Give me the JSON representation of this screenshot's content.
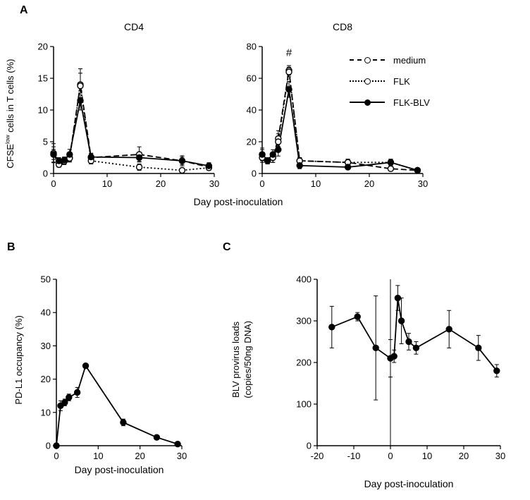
{
  "figure": {
    "panels": {
      "a": {
        "label": "A"
      },
      "b": {
        "label": "B"
      },
      "c": {
        "label": "C"
      }
    }
  },
  "chart_data": [
    {
      "id": "cd4",
      "type": "line",
      "title": "CD4",
      "xlabel": "Day post-inoculation",
      "ylabel": "CFSE^low cells in T cells (%)",
      "ylabel_parts": {
        "prefix": "CFSE",
        "sup": "low",
        "suffix": " cells in T cells (%)"
      },
      "xlim": [
        0,
        30
      ],
      "xticks": [
        0,
        10,
        20,
        30
      ],
      "ylim": [
        0,
        20
      ],
      "yticks": [
        0,
        5,
        10,
        15,
        20
      ],
      "grid": false,
      "x": [
        0,
        1,
        2,
        3,
        5,
        7,
        16,
        24,
        29
      ],
      "series": [
        {
          "name": "medium",
          "style": "dashed",
          "marker": "open",
          "values": [
            3.2,
            1.5,
            2.0,
            2.5,
            14.0,
            2.5,
            3.0,
            2.0,
            1.0
          ],
          "errors": [
            1.5,
            0.5,
            0.5,
            0.6,
            2.5,
            0.6,
            1.2,
            0.8,
            0.4
          ]
        },
        {
          "name": "FLK",
          "style": "dotted",
          "marker": "open",
          "values": [
            3.0,
            1.4,
            1.9,
            2.4,
            13.8,
            2.0,
            1.0,
            0.5,
            0.9
          ],
          "errors": [
            1.2,
            0.4,
            0.5,
            0.6,
            2.0,
            0.5,
            0.5,
            0.3,
            0.4
          ]
        },
        {
          "name": "FLK-BLV",
          "style": "solid",
          "marker": "filled",
          "values": [
            3.0,
            2.0,
            2.1,
            3.0,
            11.5,
            2.6,
            2.5,
            2.0,
            1.2
          ],
          "errors": [
            0.8,
            0.5,
            0.5,
            0.8,
            1.5,
            0.6,
            0.6,
            0.6,
            0.5
          ]
        }
      ]
    },
    {
      "id": "cd8",
      "type": "line",
      "title": "CD8",
      "xlabel": "Day post-inoculation",
      "ylabel": "CFSE^low cells in T cells (%)",
      "xlim": [
        0,
        30
      ],
      "xticks": [
        0,
        10,
        20,
        30
      ],
      "ylim": [
        0,
        80
      ],
      "yticks": [
        0,
        20,
        40,
        60,
        80
      ],
      "grid": false,
      "legend_position": "top-right",
      "x": [
        0,
        1,
        2,
        3,
        5,
        7,
        16,
        24,
        29
      ],
      "series": [
        {
          "name": "medium",
          "style": "dashed",
          "marker": "open",
          "values": [
            12,
            8,
            10,
            22,
            65,
            8,
            7,
            3,
            2
          ],
          "errors": [
            4,
            2,
            3,
            5,
            3,
            2,
            2,
            1,
            1
          ]
        },
        {
          "name": "FLK",
          "style": "dotted",
          "marker": "open",
          "values": [
            10,
            8,
            10,
            20,
            64,
            8,
            7,
            7,
            2
          ],
          "errors": [
            3,
            2,
            3,
            5,
            3,
            2,
            2,
            2,
            1
          ]
        },
        {
          "name": "FLK-BLV",
          "style": "solid",
          "marker": "filled",
          "values": [
            12,
            8,
            12,
            15,
            53,
            5,
            4,
            7,
            2
          ],
          "errors": [
            3,
            2,
            3,
            4,
            5,
            2,
            1,
            2,
            1
          ]
        }
      ],
      "annotations": [
        {
          "x": 5,
          "y": 74,
          "text": "#"
        }
      ]
    },
    {
      "id": "pdl1",
      "type": "line",
      "title": "",
      "xlabel": "Day post-inoculation",
      "ylabel": "PD-L1 occupancy (%)",
      "xlim": [
        0,
        30
      ],
      "xticks": [
        0,
        10,
        20,
        30
      ],
      "ylim": [
        0,
        50
      ],
      "yticks": [
        0,
        10,
        20,
        30,
        40,
        50
      ],
      "grid": false,
      "x": [
        0,
        1,
        2,
        3,
        5,
        7,
        16,
        24,
        29
      ],
      "series": [
        {
          "name": "PD-L1 occupancy",
          "style": "solid",
          "marker": "filled",
          "values": [
            0,
            12,
            13,
            14.5,
            16,
            24,
            7,
            2.5,
            0.5
          ],
          "errors": [
            0,
            1.5,
            1,
            1,
            1.5,
            0.7,
            1,
            0.5,
            0.3
          ]
        }
      ]
    },
    {
      "id": "blv",
      "type": "line",
      "title": "",
      "xlabel": "Day post-inoculation",
      "ylabel": "BLV provirus loads (copies/50ng DNA)",
      "ylabel_lines": [
        "BLV provirus loads",
        "(copies/50ng DNA)"
      ],
      "xlim": [
        -20,
        30
      ],
      "xticks": [
        -20,
        -10,
        0,
        10,
        20,
        30
      ],
      "ylim": [
        0,
        400
      ],
      "yticks": [
        0,
        100,
        200,
        300,
        400
      ],
      "grid": false,
      "x_zero_line": true,
      "x": [
        -16,
        -9,
        -4,
        0,
        1,
        2,
        3,
        5,
        7,
        16,
        24,
        29
      ],
      "series": [
        {
          "name": "BLV provirus load",
          "style": "solid",
          "marker": "filled",
          "values": [
            285,
            310,
            235,
            210,
            215,
            355,
            300,
            250,
            235,
            280,
            235,
            180
          ],
          "errors": [
            50,
            10,
            125,
            45,
            15,
            30,
            55,
            20,
            15,
            45,
            30,
            15
          ]
        }
      ]
    }
  ]
}
